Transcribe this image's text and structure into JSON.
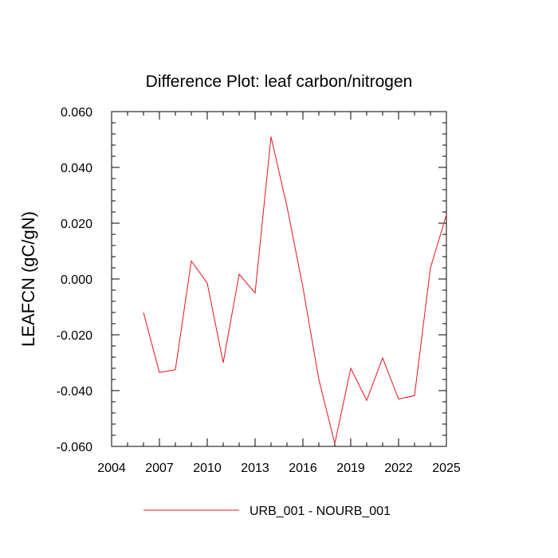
{
  "chart_data": {
    "type": "line",
    "title": "Difference Plot: leaf carbon/nitrogen",
    "xlabel": "",
    "ylabel": "LEAFCN  (gC/gN)",
    "xlim": [
      2004,
      2025
    ],
    "ylim": [
      -0.06,
      0.06
    ],
    "xticks": [
      2004,
      2007,
      2010,
      2013,
      2016,
      2019,
      2022,
      2025
    ],
    "xtick_labels": [
      "2004",
      "2007",
      "2010",
      "2013",
      "2016",
      "2019",
      "2022",
      "2025"
    ],
    "yticks": [
      -0.06,
      -0.04,
      -0.02,
      0.0,
      0.02,
      0.04,
      0.06
    ],
    "ytick_labels": [
      "-0.060",
      "-0.040",
      "-0.020",
      "0.000",
      "0.020",
      "0.040",
      "0.060"
    ],
    "grid": false,
    "legend_position": "bottom-center",
    "series": [
      {
        "name": "URB_001 - NOURB_001",
        "color": "#e8141c",
        "x": [
          2006,
          2007,
          2008,
          2009,
          2010,
          2011,
          2012,
          2013,
          2014,
          2015,
          2016,
          2017,
          2018,
          2019,
          2020,
          2021,
          2022,
          2023,
          2024,
          2025
        ],
        "y": [
          -0.012,
          -0.0335,
          -0.0325,
          0.0065,
          -0.0015,
          -0.03,
          0.0017,
          -0.005,
          0.051,
          0.026,
          -0.003,
          -0.036,
          -0.059,
          -0.032,
          -0.0435,
          -0.0283,
          -0.043,
          -0.0418,
          0.004,
          0.023
        ]
      }
    ]
  }
}
